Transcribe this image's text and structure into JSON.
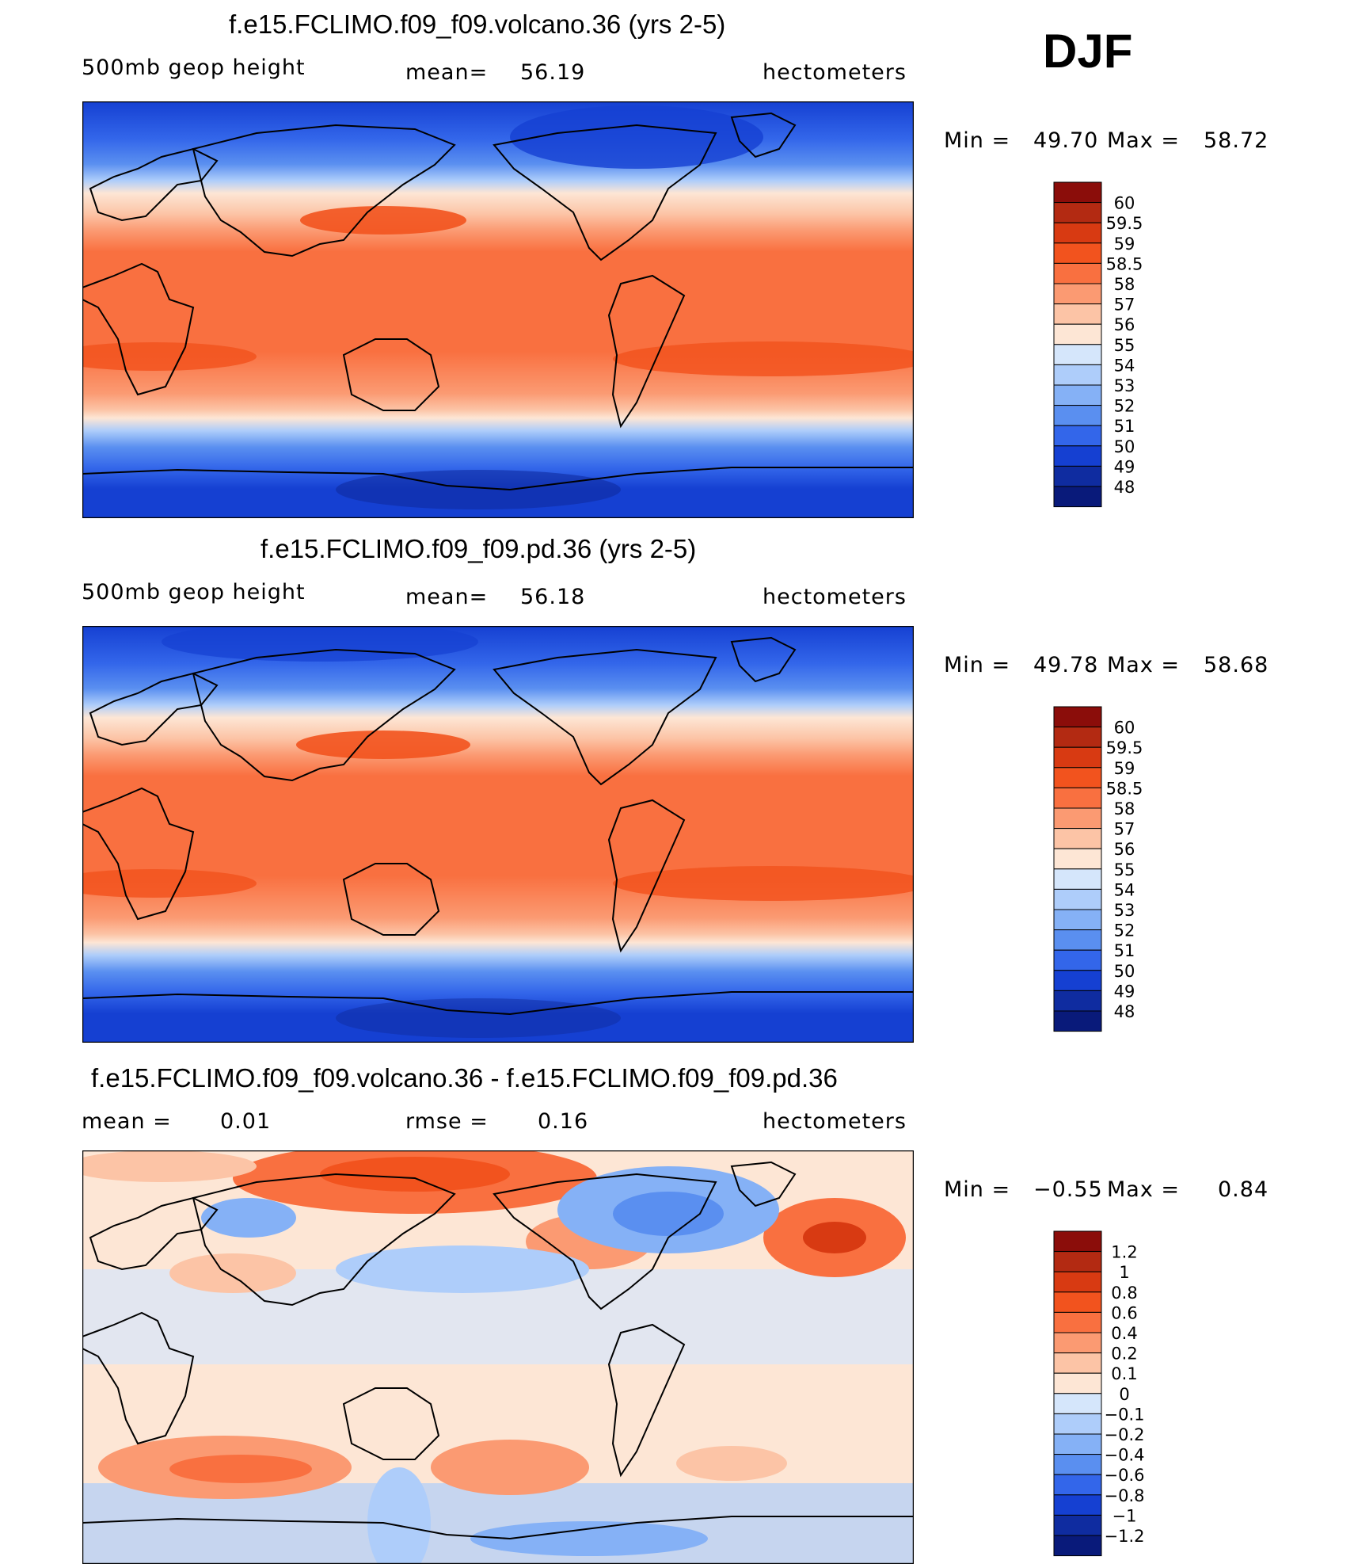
{
  "season": "DJF",
  "chart_data": [
    {
      "type": "heatmap",
      "title": "f.e15.FCLIMO.f09_f09.volcano.36 (yrs 2-5)",
      "left_label": "500mb  geop  height",
      "stat_label": "mean=",
      "stat_value": "56.19",
      "units": "hectometers",
      "min_label": "Min =",
      "min_value": "49.70",
      "max_label": "Max =",
      "max_value": "58.72",
      "colorbar_labels": [
        "60",
        "59.5",
        "59",
        "58.5",
        "58",
        "57",
        "56",
        "55",
        "54",
        "53",
        "52",
        "51",
        "50",
        "49",
        "48"
      ],
      "colorbar_colors": [
        "#8b0d0a",
        "#b32a12",
        "#d83a12",
        "#f2531e",
        "#f97040",
        "#fb9a72",
        "#fcc4a6",
        "#fde6d5",
        "#d5e6fb",
        "#aecdfa",
        "#85b1f6",
        "#5a8ff0",
        "#3366ea",
        "#1540d2",
        "#0f2ca0",
        "#091a7a"
      ]
    },
    {
      "type": "heatmap",
      "title": "f.e15.FCLIMO.f09_f09.pd.36 (yrs 2-5)",
      "left_label": "500mb  geop  height",
      "stat_label": "mean=",
      "stat_value": "56.18",
      "units": "hectometers",
      "min_label": "Min =",
      "min_value": "49.78",
      "max_label": "Max =",
      "max_value": "58.68",
      "colorbar_labels": [
        "60",
        "59.5",
        "59",
        "58.5",
        "58",
        "57",
        "56",
        "55",
        "54",
        "53",
        "52",
        "51",
        "50",
        "49",
        "48"
      ],
      "colorbar_colors": [
        "#8b0d0a",
        "#b32a12",
        "#d83a12",
        "#f2531e",
        "#f97040",
        "#fb9a72",
        "#fcc4a6",
        "#fde6d5",
        "#d5e6fb",
        "#aecdfa",
        "#85b1f6",
        "#5a8ff0",
        "#3366ea",
        "#1540d2",
        "#0f2ca0",
        "#091a7a"
      ]
    },
    {
      "type": "heatmap",
      "title": "f.e15.FCLIMO.f09_f09.volcano.36 - f.e15.FCLIMO.f09_f09.pd.36",
      "left_label": "mean =",
      "left_value": "0.01",
      "stat_label": "rmse =",
      "stat_value": "0.16",
      "units": "hectometers",
      "min_label": "Min =",
      "min_value": "−0.55",
      "max_label": "Max =",
      "max_value": "0.84",
      "colorbar_labels": [
        "1.2",
        "1",
        "0.8",
        "0.6",
        "0.4",
        "0.2",
        "0.1",
        "0",
        "−0.1",
        "−0.2",
        "−0.4",
        "−0.6",
        "−0.8",
        "−1",
        "−1.2"
      ],
      "colorbar_colors": [
        "#8b0d0a",
        "#b32a12",
        "#d83a12",
        "#f2531e",
        "#f97040",
        "#fb9a72",
        "#fcc4a6",
        "#fde6d5",
        "#d5e6fb",
        "#aecdfa",
        "#85b1f6",
        "#5a8ff0",
        "#3366ea",
        "#1540d2",
        "#0f2ca0",
        "#091a7a"
      ]
    }
  ]
}
